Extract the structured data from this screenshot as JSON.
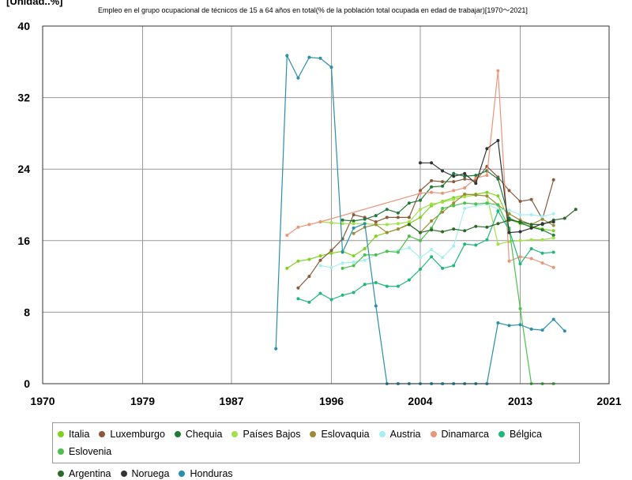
{
  "chart_data": {
    "type": "line",
    "title": "Empleo en el grupo ocupacional de técnicos de 15 a 64 años en total(% de la población total ocupada en edad de trabajar)[1970〜2021]",
    "unit_label": "[Unidad..%]",
    "xlabel": "",
    "ylabel": "",
    "xlim": [
      1970,
      2021
    ],
    "ylim": [
      0,
      40
    ],
    "x_ticks": [
      "1970",
      "1979",
      "1987",
      "1996",
      "2004",
      "2013",
      "2021"
    ],
    "y_ticks": [
      "0",
      "8",
      "16",
      "24",
      "32",
      "40"
    ],
    "grid": true,
    "legend_position": "bottom",
    "series": [
      {
        "name": "Italia",
        "color": "#7ed321",
        "points": [
          [
            1992,
            12.9
          ],
          [
            1993,
            13.7
          ],
          [
            1994,
            13.9
          ],
          [
            1995,
            14.3
          ],
          [
            1996,
            14.6
          ],
          [
            1997,
            14.8
          ],
          [
            1998,
            14.3
          ],
          [
            1999,
            15.1
          ],
          [
            2000,
            16.5
          ],
          [
            2001,
            16.9
          ],
          [
            2002,
            17.3
          ],
          [
            2003,
            17.9
          ],
          [
            2004,
            18.6
          ],
          [
            2005,
            19.9
          ],
          [
            2006,
            20.4
          ],
          [
            2007,
            20.8
          ],
          [
            2008,
            21.1
          ],
          [
            2009,
            21.2
          ],
          [
            2010,
            21.4
          ],
          [
            2011,
            21.0
          ],
          [
            2012,
            18.4
          ],
          [
            2013,
            17.9
          ],
          [
            2014,
            17.6
          ],
          [
            2015,
            17.3
          ],
          [
            2016,
            17.1
          ]
        ]
      },
      {
        "name": "Luxemburgo",
        "color": "#8b5a3c",
        "points": [
          [
            1993,
            10.7
          ],
          [
            1994,
            12.0
          ],
          [
            1995,
            13.8
          ],
          [
            1996,
            14.9
          ],
          [
            1997,
            16.2
          ],
          [
            1998,
            18.9
          ],
          [
            1999,
            18.6
          ],
          [
            2000,
            18.1
          ],
          [
            2001,
            18.6
          ],
          [
            2002,
            18.6
          ],
          [
            2003,
            18.6
          ],
          [
            2004,
            21.6
          ],
          [
            2005,
            22.7
          ],
          [
            2006,
            22.6
          ],
          [
            2007,
            22.6
          ],
          [
            2008,
            22.9
          ],
          [
            2009,
            22.7
          ],
          [
            2010,
            24.3
          ],
          [
            2011,
            23.1
          ],
          [
            2012,
            21.6
          ],
          [
            2013,
            20.4
          ],
          [
            2014,
            20.6
          ],
          [
            2015,
            18.4
          ],
          [
            2016,
            22.8
          ]
        ]
      },
      {
        "name": "Chequia",
        "color": "#1f7a3a",
        "points": [
          [
            1997,
            18.3
          ],
          [
            1998,
            18.2
          ],
          [
            1999,
            18.4
          ],
          [
            2000,
            18.8
          ],
          [
            2001,
            19.5
          ],
          [
            2002,
            19.1
          ],
          [
            2003,
            20.2
          ],
          [
            2004,
            20.5
          ],
          [
            2005,
            22.0
          ],
          [
            2006,
            22.1
          ],
          [
            2007,
            23.5
          ],
          [
            2008,
            23.2
          ],
          [
            2009,
            23.3
          ],
          [
            2010,
            23.8
          ],
          [
            2011,
            22.9
          ],
          [
            2012,
            18.5
          ],
          [
            2013,
            18.0
          ],
          [
            2014,
            17.5
          ],
          [
            2015,
            17.2
          ],
          [
            2016,
            16.6
          ]
        ]
      },
      {
        "name": "Países Bajos",
        "color": "#a3e04b",
        "points": [
          [
            1995,
            18.1
          ],
          [
            1996,
            18.0
          ],
          [
            1997,
            17.9
          ],
          [
            1998,
            17.9
          ],
          [
            1999,
            17.9
          ],
          [
            2000,
            17.8
          ],
          [
            2001,
            17.8
          ],
          [
            2002,
            17.9
          ],
          [
            2003,
            18.1
          ],
          [
            2004,
            19.5
          ],
          [
            2005,
            20.1
          ],
          [
            2006,
            20.3
          ],
          [
            2007,
            20.6
          ],
          [
            2008,
            20.9
          ],
          [
            2009,
            21.1
          ],
          [
            2010,
            21.0
          ],
          [
            2011,
            15.6
          ],
          [
            2012,
            15.9
          ],
          [
            2013,
            16.0
          ],
          [
            2014,
            16.1
          ],
          [
            2015,
            16.1
          ],
          [
            2016,
            16.3
          ]
        ]
      },
      {
        "name": "Eslovaquia",
        "color": "#9c8a3c",
        "points": [
          [
            1998,
            16.8
          ],
          [
            1999,
            17.5
          ],
          [
            2000,
            17.8
          ],
          [
            2001,
            16.9
          ],
          [
            2002,
            17.3
          ],
          [
            2003,
            17.8
          ],
          [
            2004,
            16.9
          ],
          [
            2005,
            18.2
          ],
          [
            2006,
            19.2
          ],
          [
            2007,
            20.2
          ],
          [
            2008,
            21.2
          ],
          [
            2009,
            21.1
          ],
          [
            2010,
            21.0
          ],
          [
            2011,
            20.0
          ],
          [
            2012,
            19.0
          ],
          [
            2013,
            18.3
          ],
          [
            2014,
            17.8
          ],
          [
            2015,
            18.4
          ],
          [
            2016,
            17.7
          ]
        ]
      },
      {
        "name": "Austria",
        "color": "#a8eef0",
        "points": [
          [
            1995,
            13.2
          ],
          [
            1996,
            13.0
          ],
          [
            1997,
            13.5
          ],
          [
            1998,
            13.6
          ],
          [
            1999,
            13.8
          ],
          [
            2000,
            14.4
          ],
          [
            2001,
            14.8
          ],
          [
            2002,
            14.9
          ],
          [
            2003,
            15.2
          ],
          [
            2004,
            14.1
          ],
          [
            2005,
            15.0
          ],
          [
            2006,
            14.1
          ],
          [
            2007,
            15.4
          ],
          [
            2008,
            19.6
          ],
          [
            2009,
            19.9
          ],
          [
            2010,
            20.1
          ],
          [
            2011,
            19.5
          ],
          [
            2012,
            19.4
          ],
          [
            2013,
            18.9
          ],
          [
            2014,
            18.9
          ],
          [
            2015,
            18.7
          ],
          [
            2016,
            19.0
          ]
        ]
      },
      {
        "name": "Dinamarca",
        "color": "#e8957a",
        "points": [
          [
            1992,
            16.6
          ],
          [
            1993,
            17.5
          ],
          [
            1994,
            17.8
          ],
          [
            1995,
            18.1
          ],
          [
            2004,
            21.3
          ],
          [
            2005,
            21.4
          ],
          [
            2006,
            21.3
          ],
          [
            2007,
            21.6
          ],
          [
            2008,
            21.9
          ],
          [
            2009,
            23.0
          ],
          [
            2010,
            23.3
          ],
          [
            2011,
            35.0
          ],
          [
            2012,
            13.7
          ],
          [
            2013,
            14.2
          ],
          [
            2014,
            14.0
          ],
          [
            2015,
            13.5
          ],
          [
            2016,
            13.0
          ]
        ]
      },
      {
        "name": "Bélgica",
        "color": "#1fb87a",
        "points": [
          [
            1993,
            9.5
          ],
          [
            1994,
            9.1
          ],
          [
            1995,
            10.1
          ],
          [
            1996,
            9.4
          ],
          [
            1997,
            9.9
          ],
          [
            1998,
            10.2
          ],
          [
            1999,
            11.1
          ],
          [
            2000,
            11.3
          ],
          [
            2001,
            10.9
          ],
          [
            2002,
            10.9
          ],
          [
            2003,
            11.6
          ],
          [
            2004,
            12.8
          ],
          [
            2005,
            14.2
          ],
          [
            2006,
            12.9
          ],
          [
            2007,
            13.2
          ],
          [
            2008,
            15.6
          ],
          [
            2009,
            15.5
          ],
          [
            2010,
            16.1
          ],
          [
            2011,
            19.3
          ],
          [
            2012,
            17.2
          ],
          [
            2013,
            13.4
          ],
          [
            2014,
            15.1
          ],
          [
            2015,
            14.6
          ],
          [
            2016,
            14.7
          ]
        ]
      },
      {
        "name": "Eslovenia",
        "color": "#4cc04c",
        "points": [
          [
            1997,
            12.9
          ],
          [
            1998,
            13.2
          ],
          [
            1999,
            14.4
          ],
          [
            2000,
            14.4
          ],
          [
            2001,
            14.8
          ],
          [
            2002,
            14.7
          ],
          [
            2003,
            16.5
          ],
          [
            2004,
            16.0
          ],
          [
            2005,
            17.4
          ],
          [
            2006,
            19.6
          ],
          [
            2007,
            19.9
          ],
          [
            2008,
            20.2
          ],
          [
            2009,
            20.1
          ],
          [
            2010,
            20.2
          ],
          [
            2011,
            20.0
          ],
          [
            2012,
            17.4
          ],
          [
            2013,
            8.4
          ],
          [
            2014,
            0.0
          ],
          [
            2015,
            0.0
          ],
          [
            2016,
            0.0
          ]
        ]
      },
      {
        "name": "Argentina",
        "color": "#2a6b2a",
        "points": [
          [
            2003,
            17.8
          ],
          [
            2004,
            16.9
          ],
          [
            2005,
            17.2
          ],
          [
            2006,
            17.0
          ],
          [
            2007,
            17.3
          ],
          [
            2008,
            17.1
          ],
          [
            2009,
            17.6
          ],
          [
            2010,
            17.5
          ],
          [
            2011,
            17.9
          ],
          [
            2012,
            18.3
          ],
          [
            2013,
            18.1
          ],
          [
            2014,
            17.8
          ],
          [
            2015,
            17.8
          ],
          [
            2016,
            18.3
          ],
          [
            2017,
            18.5
          ],
          [
            2018,
            19.5
          ]
        ]
      },
      {
        "name": "Noruega",
        "color": "#333333",
        "points": [
          [
            2004,
            24.7
          ],
          [
            2005,
            24.7
          ],
          [
            2006,
            23.8
          ],
          [
            2007,
            23.2
          ],
          [
            2008,
            23.5
          ],
          [
            2009,
            22.4
          ],
          [
            2010,
            26.3
          ],
          [
            2011,
            27.2
          ],
          [
            2012,
            16.9
          ],
          [
            2013,
            17.0
          ],
          [
            2014,
            17.4
          ],
          [
            2015,
            17.9
          ],
          [
            2016,
            18.1
          ]
        ]
      },
      {
        "name": "Honduras",
        "color": "#2a8fa8",
        "points": [
          [
            1991,
            3.9
          ],
          [
            1992,
            36.7
          ],
          [
            1993,
            34.2
          ],
          [
            1994,
            36.5
          ],
          [
            1995,
            36.4
          ],
          [
            1996,
            35.4
          ],
          [
            1997,
            14.7
          ],
          [
            1998,
            17.4
          ],
          [
            1999,
            17.9
          ],
          [
            2000,
            8.7
          ],
          [
            2001,
            0.0
          ],
          [
            2002,
            0.0
          ],
          [
            2003,
            0.0
          ],
          [
            2004,
            0.0
          ],
          [
            2005,
            0.0
          ],
          [
            2006,
            0.0
          ],
          [
            2007,
            0.0
          ],
          [
            2008,
            0.0
          ],
          [
            2009,
            0.0
          ],
          [
            2010,
            0.0
          ],
          [
            2011,
            6.8
          ],
          [
            2012,
            6.5
          ],
          [
            2013,
            6.6
          ],
          [
            2014,
            6.1
          ],
          [
            2015,
            6.0
          ],
          [
            2016,
            7.2
          ],
          [
            2017,
            5.9
          ]
        ]
      }
    ]
  }
}
